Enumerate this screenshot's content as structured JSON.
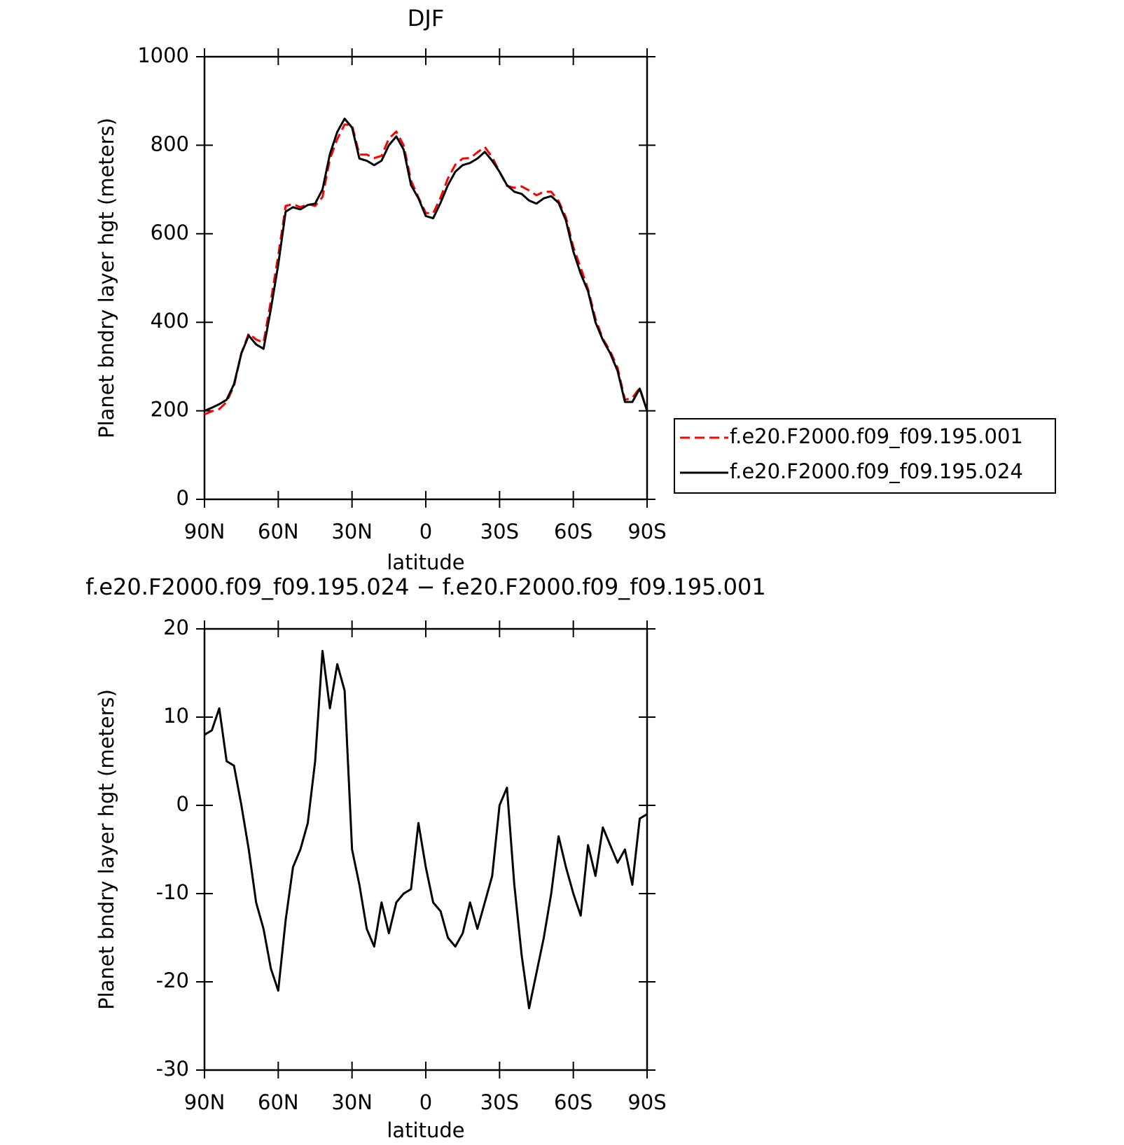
{
  "chart_data": [
    {
      "type": "line",
      "title": "DJF",
      "x_label": "latitude",
      "y_label": "Planet bndry layer hgt (meters)",
      "x": [
        90,
        87,
        84,
        81,
        78,
        75,
        72,
        69,
        66,
        63,
        60,
        57,
        54,
        51,
        48,
        45,
        42,
        39,
        36,
        33,
        30,
        27,
        24,
        21,
        18,
        15,
        12,
        9,
        6,
        3,
        0,
        -3,
        -6,
        -9,
        -12,
        -15,
        -18,
        -21,
        -24,
        -27,
        -30,
        -33,
        -36,
        -39,
        -42,
        -45,
        -48,
        -51,
        -54,
        -57,
        -60,
        -63,
        -66,
        -69,
        -72,
        -75,
        -78,
        -81,
        -84,
        -87,
        -90
      ],
      "series": [
        {
          "name": "f.e20.F2000.f09_f09.195.001",
          "color": "#ff0000",
          "dashed": true,
          "values": [
            192,
            199,
            204,
            220,
            256,
            330,
            375,
            361,
            354,
            449,
            551,
            663,
            667,
            660,
            667,
            663,
            683,
            769,
            814,
            847,
            845,
            779,
            779,
            771,
            776,
            815,
            831,
            800,
            720,
            682,
            647,
            646,
            682,
            725,
            756,
            770,
            771,
            784,
            796,
            773,
            740,
            708,
            704,
            707,
            698,
            687,
            695,
            695,
            674,
            637,
            570,
            523,
            475,
            408,
            363,
            335,
            297,
            225,
            229,
            252,
            201
          ]
        },
        {
          "name": "f.e20.F2000.f09_f09.195.024",
          "color": "#000000",
          "dashed": false,
          "values": [
            200,
            207,
            215,
            225,
            260,
            330,
            370,
            350,
            340,
            430,
            530,
            650,
            660,
            655,
            665,
            668,
            700,
            780,
            830,
            860,
            840,
            770,
            765,
            755,
            765,
            800,
            820,
            790,
            710,
            680,
            640,
            635,
            670,
            710,
            740,
            755,
            760,
            770,
            785,
            765,
            740,
            710,
            695,
            690,
            675,
            668,
            680,
            685,
            670,
            630,
            560,
            510,
            470,
            400,
            360,
            330,
            290,
            220,
            220,
            250,
            200
          ]
        }
      ],
      "xlim": [
        90,
        -90
      ],
      "xticks": [
        {
          "value": 90,
          "label": "90N"
        },
        {
          "value": 60,
          "label": "60N"
        },
        {
          "value": 30,
          "label": "30N"
        },
        0,
        {
          "value": -30,
          "label": "30S"
        },
        {
          "value": -60,
          "label": "60S"
        },
        {
          "value": -90,
          "label": "90S"
        }
      ],
      "ylim": [
        0,
        1000
      ],
      "yticks": [
        0,
        200,
        400,
        600,
        800,
        1000
      ],
      "legend": "right"
    },
    {
      "type": "line",
      "title": "f.e20.F2000.f09_f09.195.024 − f.e20.F2000.f09_f09.195.001",
      "x_label": "latitude",
      "y_label": "Planet bndry layer hgt (meters)",
      "x": [
        90,
        87,
        84,
        81,
        78,
        75,
        72,
        69,
        66,
        63,
        60,
        57,
        54,
        51,
        48,
        45,
        42,
        39,
        36,
        33,
        30,
        27,
        24,
        21,
        18,
        15,
        12,
        9,
        6,
        3,
        0,
        -3,
        -6,
        -9,
        -12,
        -15,
        -18,
        -21,
        -24,
        -27,
        -30,
        -33,
        -36,
        -39,
        -42,
        -45,
        -48,
        -51,
        -54,
        -57,
        -60,
        -63,
        -66,
        -69,
        -72,
        -75,
        -78,
        -81,
        -84,
        -87,
        -90
      ],
      "color": "#000000",
      "values": [
        8,
        8.5,
        11,
        5,
        4.5,
        0,
        -5,
        -11,
        -14,
        -18.5,
        -21,
        -13,
        -7,
        -5,
        -2,
        5,
        17.5,
        11,
        16,
        13,
        -5,
        -9,
        -14,
        -16,
        -11,
        -14.5,
        -11,
        -10,
        -9.5,
        -2,
        -7,
        -11,
        -12,
        -15,
        -16,
        -14.5,
        -11,
        -14,
        -11,
        -8,
        0,
        2,
        -9,
        -17,
        -23,
        -19,
        -15,
        -10,
        -3.5,
        -7,
        -10,
        -12.5,
        -4.5,
        -8,
        -2.5,
        -4.5,
        -6.5,
        -5,
        -9,
        -1.5,
        -1
      ],
      "xlim": [
        90,
        -90
      ],
      "xticks": [
        {
          "value": 90,
          "label": "90N"
        },
        {
          "value": 60,
          "label": "60N"
        },
        {
          "value": 30,
          "label": "30N"
        },
        0,
        {
          "value": -30,
          "label": "30S"
        },
        {
          "value": -60,
          "label": "60S"
        },
        {
          "value": -90,
          "label": "90S"
        }
      ],
      "ylim": [
        -30,
        20
      ],
      "yticks": [
        -30,
        -20,
        -10,
        0,
        10,
        20
      ]
    }
  ]
}
